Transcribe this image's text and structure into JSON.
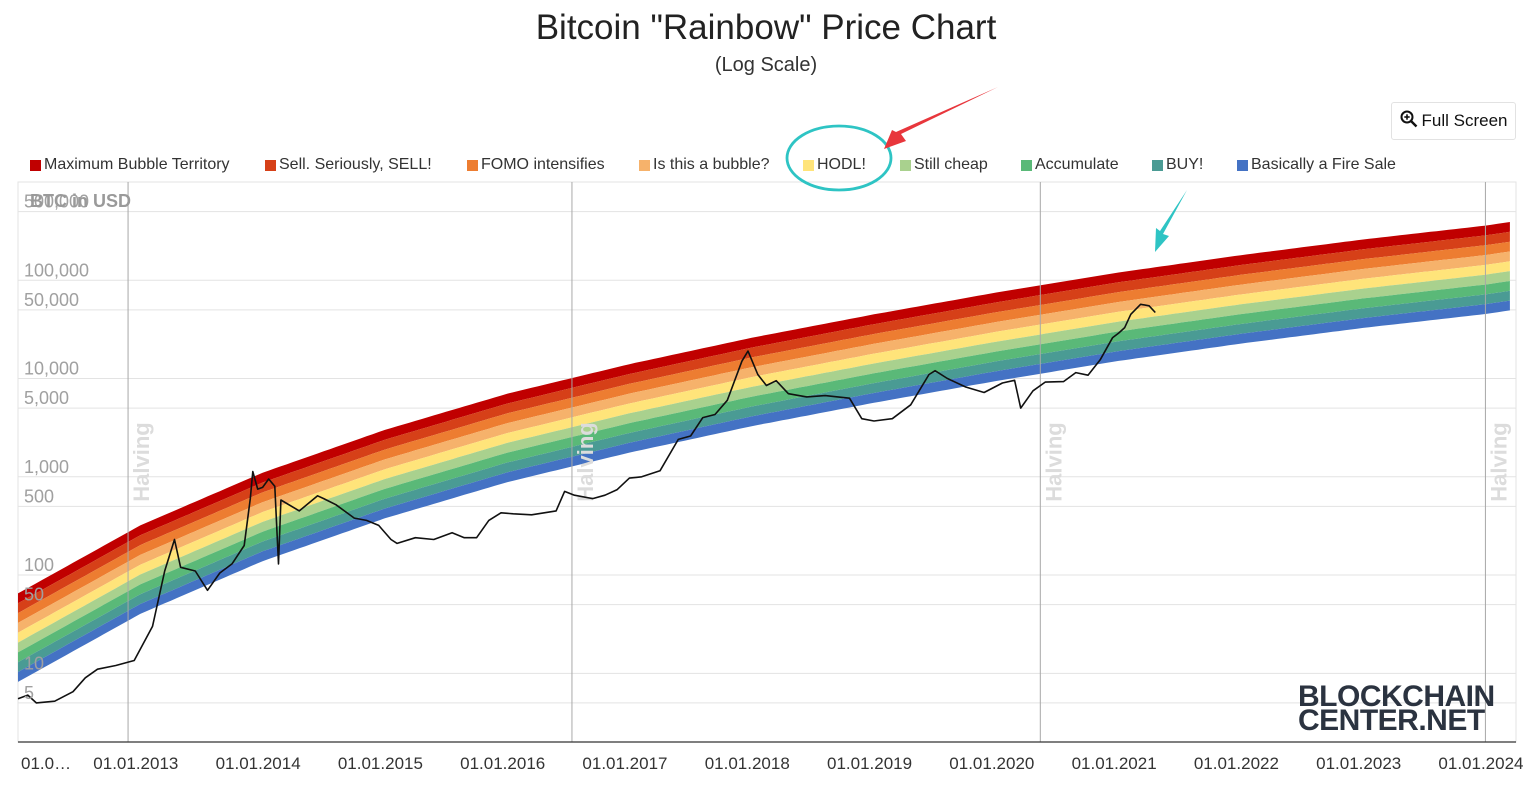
{
  "header": {
    "title": "Bitcoin \"Rainbow\" Price Chart",
    "subtitle": "(Log Scale)",
    "full_screen_label": "Full Screen",
    "full_screen_icon": "zoom-in-icon"
  },
  "legend": [
    {
      "label": "Maximum Bubble Territory",
      "color": "#c00000"
    },
    {
      "label": "Sell. Seriously, SELL!",
      "color": "#d64018"
    },
    {
      "label": "FOMO intensifies",
      "color": "#ed7d31"
    },
    {
      "label": "Is this a bubble?",
      "color": "#f6b26b"
    },
    {
      "label": "HODL!",
      "color": "#ffe47a"
    },
    {
      "label": "Still cheap",
      "color": "#a9d18e"
    },
    {
      "label": "Accumulate",
      "color": "#5ab978"
    },
    {
      "label": "BUY!",
      "color": "#4a9b94"
    },
    {
      "label": "Basically a Fire Sale",
      "color": "#4472c4"
    }
  ],
  "annotation_colors": {
    "circle": "#2ec4c4",
    "red_arrow": "#e8363c",
    "teal_arrow": "#2ec4c4"
  },
  "watermark": {
    "line1": "BLOCKCHAIN",
    "line2": "CENTER.NET"
  },
  "chart_data": {
    "type": "area",
    "title": "Bitcoin \"Rainbow\" Price Chart",
    "subtitle": "(Log Scale)",
    "ylabel": "BTC in USD",
    "yscale": "log",
    "ylim": [
      1,
      1000000
    ],
    "xlim": [
      "2012-01-01",
      "2024-07-01"
    ],
    "yticks": [
      {
        "value": 500000,
        "label": "500,000"
      },
      {
        "value": 100000,
        "label": "100,000"
      },
      {
        "value": 50000,
        "label": "50,000"
      },
      {
        "value": 10000,
        "label": "10,000"
      },
      {
        "value": 5000,
        "label": "5,000"
      },
      {
        "value": 1000,
        "label": "1,000"
      },
      {
        "value": 500,
        "label": "500"
      },
      {
        "value": 100,
        "label": "100"
      },
      {
        "value": 50,
        "label": "50"
      },
      {
        "value": 10,
        "label": "10"
      },
      {
        "value": 5,
        "label": "5"
      }
    ],
    "xticks": [
      {
        "year": 2012.0,
        "label": "01.0…"
      },
      {
        "year": 2013.0,
        "label": "01.01.2013"
      },
      {
        "year": 2014.0,
        "label": "01.01.2014"
      },
      {
        "year": 2015.0,
        "label": "01.01.2015"
      },
      {
        "year": 2016.0,
        "label": "01.01.2016"
      },
      {
        "year": 2017.0,
        "label": "01.01.2017"
      },
      {
        "year": 2018.0,
        "label": "01.01.2018"
      },
      {
        "year": 2019.0,
        "label": "01.01.2019"
      },
      {
        "year": 2020.0,
        "label": "01.01.2020"
      },
      {
        "year": 2021.0,
        "label": "01.01.2021"
      },
      {
        "year": 2022.0,
        "label": "01.01.2022"
      },
      {
        "year": 2023.0,
        "label": "01.01.2023"
      },
      {
        "year": 2024.0,
        "label": "01.01.2024"
      }
    ],
    "halvings": [
      {
        "year": 2012.9,
        "label": "Halving"
      },
      {
        "year": 2016.53,
        "label": "Halving"
      },
      {
        "year": 2020.36,
        "label": "Halving"
      },
      {
        "year": 2024.0,
        "label": "Halving"
      }
    ],
    "bands": {
      "top_edge": [
        {
          "year": 2012.0,
          "value": 65
        },
        {
          "year": 2013.0,
          "value": 320
        },
        {
          "year": 2014.0,
          "value": 1100
        },
        {
          "year": 2015.0,
          "value": 3000
        },
        {
          "year": 2016.0,
          "value": 7000
        },
        {
          "year": 2017.0,
          "value": 14000
        },
        {
          "year": 2018.0,
          "value": 26000
        },
        {
          "year": 2019.0,
          "value": 45000
        },
        {
          "year": 2020.0,
          "value": 75000
        },
        {
          "year": 2021.0,
          "value": 120000
        },
        {
          "year": 2022.0,
          "value": 180000
        },
        {
          "year": 2023.0,
          "value": 260000
        },
        {
          "year": 2024.0,
          "value": 360000
        },
        {
          "year": 2024.25,
          "value": 400000
        }
      ],
      "log_width": 0.9
    },
    "series": [
      {
        "name": "BTC Price",
        "points": [
          [
            2012.0,
            5.5
          ],
          [
            2012.08,
            6
          ],
          [
            2012.15,
            5
          ],
          [
            2012.3,
            5.2
          ],
          [
            2012.45,
            6.5
          ],
          [
            2012.55,
            9
          ],
          [
            2012.65,
            11
          ],
          [
            2012.8,
            12
          ],
          [
            2012.95,
            13.5
          ],
          [
            2013.1,
            30
          ],
          [
            2013.2,
            110
          ],
          [
            2013.28,
            230
          ],
          [
            2013.33,
            120
          ],
          [
            2013.45,
            110
          ],
          [
            2013.55,
            70
          ],
          [
            2013.65,
            105
          ],
          [
            2013.75,
            130
          ],
          [
            2013.85,
            200
          ],
          [
            2013.9,
            600
          ],
          [
            2013.92,
            1130
          ],
          [
            2013.96,
            750
          ],
          [
            2014.0,
            780
          ],
          [
            2014.05,
            950
          ],
          [
            2014.1,
            800
          ],
          [
            2014.13,
            130
          ],
          [
            2014.15,
            580
          ],
          [
            2014.3,
            450
          ],
          [
            2014.45,
            640
          ],
          [
            2014.5,
            600
          ],
          [
            2014.6,
            520
          ],
          [
            2014.75,
            380
          ],
          [
            2014.85,
            360
          ],
          [
            2014.95,
            320
          ],
          [
            2015.05,
            230
          ],
          [
            2015.1,
            210
          ],
          [
            2015.25,
            240
          ],
          [
            2015.4,
            230
          ],
          [
            2015.55,
            270
          ],
          [
            2015.65,
            240
          ],
          [
            2015.75,
            240
          ],
          [
            2015.85,
            360
          ],
          [
            2015.95,
            430
          ],
          [
            2016.05,
            420
          ],
          [
            2016.2,
            410
          ],
          [
            2016.4,
            450
          ],
          [
            2016.47,
            710
          ],
          [
            2016.55,
            650
          ],
          [
            2016.7,
            600
          ],
          [
            2016.8,
            650
          ],
          [
            2016.9,
            740
          ],
          [
            2017.0,
            970
          ],
          [
            2017.1,
            1000
          ],
          [
            2017.25,
            1150
          ],
          [
            2017.4,
            2400
          ],
          [
            2017.5,
            2600
          ],
          [
            2017.6,
            4000
          ],
          [
            2017.7,
            4300
          ],
          [
            2017.8,
            6000
          ],
          [
            2017.92,
            15000
          ],
          [
            2017.97,
            19000
          ],
          [
            2018.05,
            11000
          ],
          [
            2018.12,
            8500
          ],
          [
            2018.2,
            9500
          ],
          [
            2018.3,
            7000
          ],
          [
            2018.45,
            6500
          ],
          [
            2018.6,
            6700
          ],
          [
            2018.8,
            6300
          ],
          [
            2018.9,
            3900
          ],
          [
            2019.0,
            3700
          ],
          [
            2019.15,
            3900
          ],
          [
            2019.3,
            5400
          ],
          [
            2019.45,
            11000
          ],
          [
            2019.5,
            12000
          ],
          [
            2019.6,
            10000
          ],
          [
            2019.75,
            8200
          ],
          [
            2019.9,
            7200
          ],
          [
            2020.05,
            9000
          ],
          [
            2020.15,
            9600
          ],
          [
            2020.2,
            5000
          ],
          [
            2020.3,
            7500
          ],
          [
            2020.4,
            9200
          ],
          [
            2020.55,
            9300
          ],
          [
            2020.65,
            11500
          ],
          [
            2020.75,
            10800
          ],
          [
            2020.85,
            15500
          ],
          [
            2020.95,
            26000
          ],
          [
            2021.0,
            29000
          ],
          [
            2021.05,
            33000
          ],
          [
            2021.1,
            45000
          ],
          [
            2021.18,
            57000
          ],
          [
            2021.25,
            55000
          ],
          [
            2021.3,
            47000
          ]
        ]
      }
    ]
  }
}
